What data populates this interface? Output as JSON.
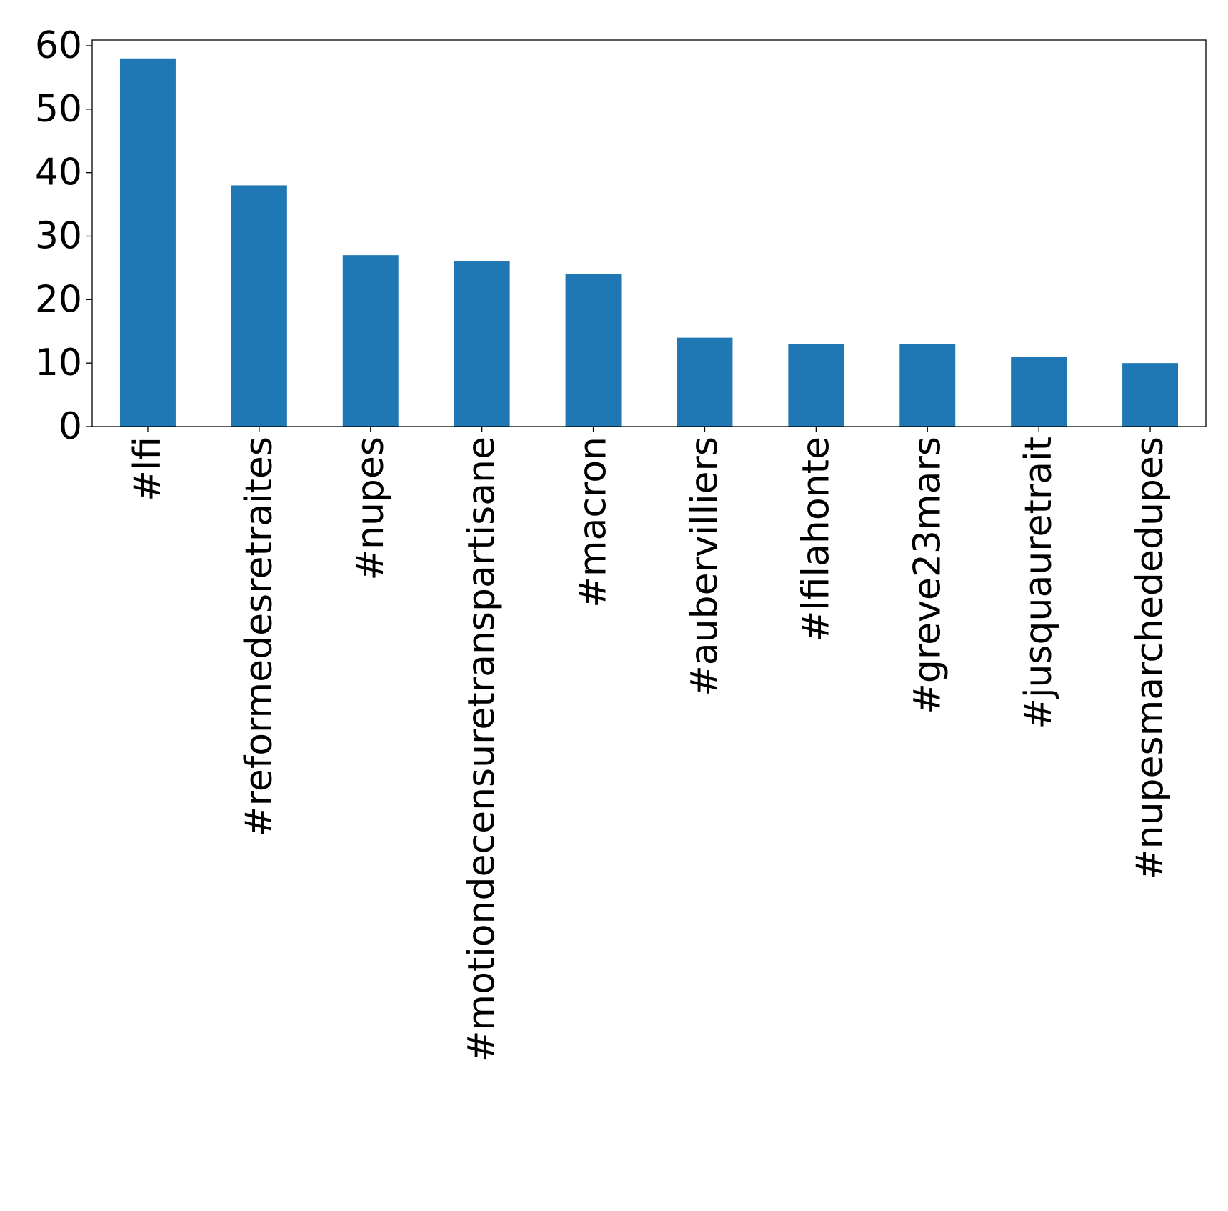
{
  "chart_data": {
    "type": "bar",
    "title": "",
    "xlabel": "",
    "ylabel": "",
    "categories": [
      "#lfi",
      "#reformedesretraites",
      "#nupes",
      "#motiondecensuretranspartisane",
      "#macron",
      "#aubervilliers",
      "#lfilahonte",
      "#greve23mars",
      "#jusquauretrait",
      "#nupesmarchededupes"
    ],
    "values": [
      58,
      38,
      27,
      26,
      24,
      14,
      13,
      13,
      11,
      10
    ],
    "yticks": [
      0,
      10,
      20,
      30,
      40,
      50,
      60
    ],
    "ylim": [
      0,
      60.9
    ],
    "bar_color": "#1f77b4",
    "grid": false,
    "legend": "none"
  }
}
